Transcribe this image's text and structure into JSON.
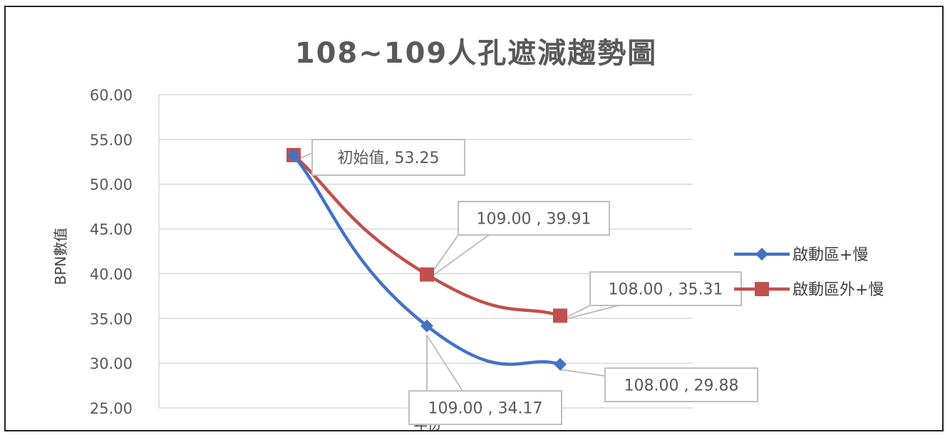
{
  "chart_data": {
    "type": "line",
    "title": "108~109人孔遮減趨勢圖",
    "xlabel": "年份",
    "ylabel": "BPN數值",
    "ylim": [
      25,
      60
    ],
    "y_ticks": [
      "60.00",
      "55.00",
      "50.00",
      "45.00",
      "40.00",
      "35.00",
      "30.00",
      "25.00"
    ],
    "grid": true,
    "legend_position": "right",
    "series": [
      {
        "name": "啟動區+慢",
        "color": "#4472C4",
        "marker": "diamond",
        "values": [
          53.25,
          34.17,
          29.88
        ],
        "labels": [
          "初始值, 53.25",
          "109.00 , 34.17",
          "108.00 , 29.88"
        ]
      },
      {
        "name": "啟動區外+慢",
        "color": "#C0504D",
        "marker": "square",
        "values": [
          53.25,
          39.91,
          35.31
        ],
        "labels": [
          "",
          "109.00 , 39.91",
          "108.00 , 35.31"
        ]
      }
    ]
  }
}
